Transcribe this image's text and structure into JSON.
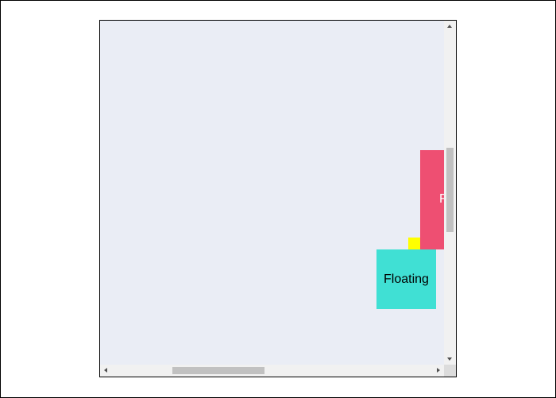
{
  "scroll_area": {
    "background_color": "#eaedf5",
    "vertical_scroll_fraction": 0.37,
    "horizontal_scroll_fraction": 0.21
  },
  "boxes": {
    "pink": {
      "label": "F",
      "color": "#ee4f72"
    },
    "yellow": {
      "color": "#ffff00"
    },
    "teal": {
      "label": "Floating",
      "color": "#40e0d4"
    }
  },
  "scrollbars": {
    "up_icon": "triangle-up",
    "down_icon": "triangle-down",
    "left_icon": "triangle-left",
    "right_icon": "triangle-right"
  }
}
